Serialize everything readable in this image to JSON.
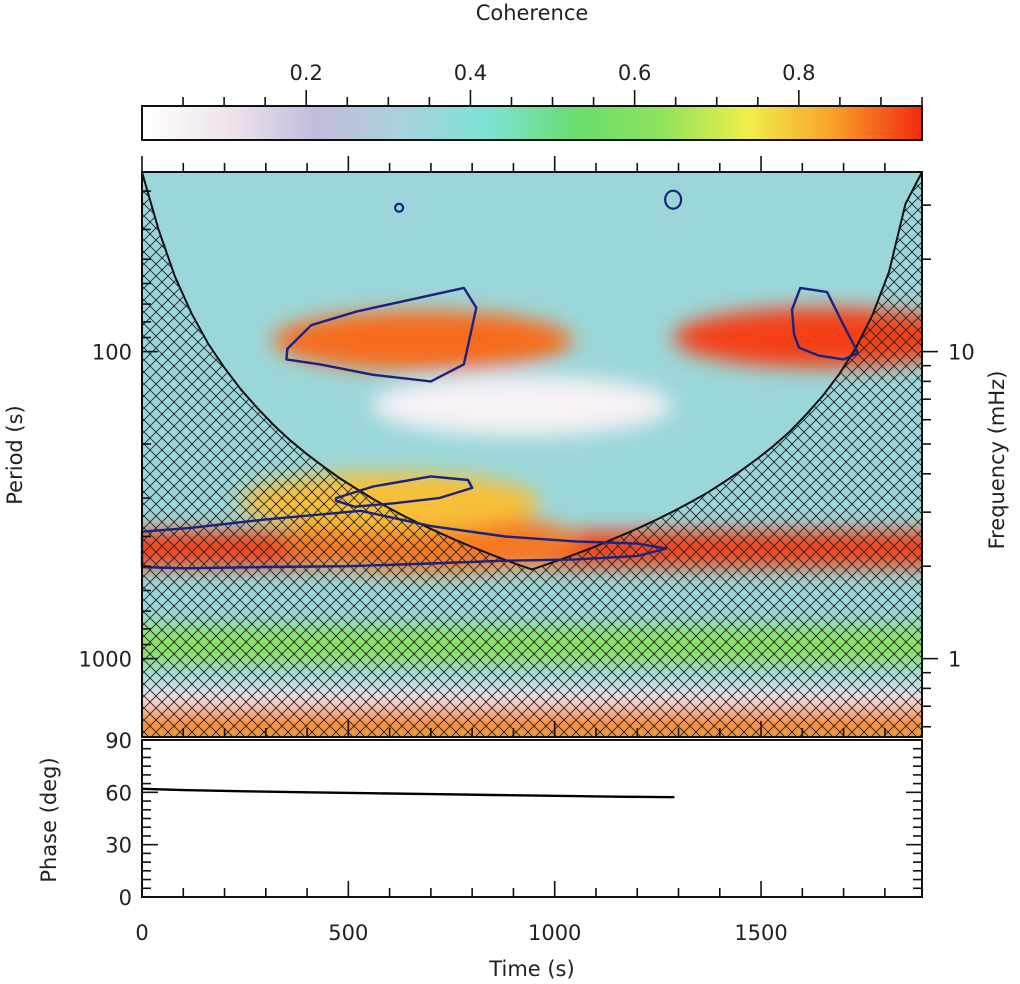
{
  "chart_data": [
    {
      "type": "heatmap",
      "title": "",
      "colorbar": {
        "title": "Coherence",
        "range": [
          0,
          0.95
        ],
        "ticks": [
          0.2,
          0.4,
          0.6,
          0.8
        ],
        "tick_labels": [
          "0.2",
          "0.4",
          "0.6",
          "0.8"
        ],
        "colors": [
          "#ffffff",
          "#efe4ec",
          "#c3bcdc",
          "#a9d2dc",
          "#7ce3d5",
          "#68dd6f",
          "#8fe35b",
          "#f1ef4a",
          "#fa9e29",
          "#f22a10"
        ]
      },
      "xlabel": "Time (s)",
      "ylabel": "Period (s)",
      "y2label": "Frequency (mHz)",
      "xlim": [
        0,
        1890
      ],
      "ylim_period": [
        26,
        1800
      ],
      "yscale": "log",
      "x_ticks": [
        0,
        500,
        1000,
        1500
      ],
      "x_tick_labels": [
        "0",
        "500",
        "1000",
        "1500"
      ],
      "y_ticks": [
        100,
        1000
      ],
      "y_tick_labels": [
        "100",
        "1000"
      ],
      "y2_ticks_mhz": [
        10,
        1
      ],
      "y2_tick_labels": [
        "10",
        "1"
      ],
      "features": [
        {
          "name": "band-1",
          "period": 440,
          "coherence": 0.93
        },
        {
          "name": "band-2",
          "period": 900,
          "coherence": 0.62
        },
        {
          "name": "band-3",
          "period": 1400,
          "coherence": 0.1
        },
        {
          "name": "band-4",
          "period": 1650,
          "coherence": 0.86
        },
        {
          "name": "blob-1",
          "time": 700,
          "period": 420,
          "coherence": 0.88
        },
        {
          "name": "blob-2",
          "time": 680,
          "period": 92,
          "coherence": 0.89
        },
        {
          "name": "blob-3",
          "time": 1650,
          "period": 90,
          "coherence": 0.93
        },
        {
          "name": "blob-4",
          "time": 600,
          "period": 310,
          "coherence": 0.8
        },
        {
          "name": "blob-5",
          "time": 920,
          "period": 150,
          "coherence": 0.05
        }
      ],
      "significance_contours": [
        {
          "name": "contour-high-left",
          "points": [
            [
              352,
              98
            ],
            [
              410,
              82
            ],
            [
              520,
              74
            ],
            [
              780,
              62
            ],
            [
              810,
              72
            ],
            [
              780,
              110
            ],
            [
              700,
              125
            ],
            [
              560,
              119
            ],
            [
              430,
              110
            ],
            [
              350,
              106
            ]
          ]
        },
        {
          "name": "contour-high-right",
          "points": [
            [
              1575,
              73
            ],
            [
              1595,
              62
            ],
            [
              1660,
              64
            ],
            [
              1700,
              82
            ],
            [
              1735,
              101
            ],
            [
              1700,
              106
            ],
            [
              1640,
              103
            ],
            [
              1592,
              97
            ],
            [
              1580,
              88
            ]
          ]
        },
        {
          "name": "contour-mid",
          "points": [
            [
              470,
              300
            ],
            [
              560,
              275
            ],
            [
              700,
              255
            ],
            [
              790,
              262
            ],
            [
              800,
              278
            ],
            [
              720,
              300
            ],
            [
              610,
              312
            ],
            [
              515,
              320
            ],
            [
              470,
              306
            ]
          ]
        },
        {
          "name": "contour-long",
          "points": [
            [
              0,
              386
            ],
            [
              120,
              375
            ],
            [
              300,
              352
            ],
            [
              530,
              330
            ],
            [
              700,
              370
            ],
            [
              880,
              400
            ],
            [
              1050,
              415
            ],
            [
              1200,
              422
            ],
            [
              1270,
              438
            ],
            [
              1200,
              463
            ],
            [
              1050,
              475
            ],
            [
              870,
              480
            ],
            [
              700,
              490
            ],
            [
              500,
              500
            ],
            [
              300,
              503
            ],
            [
              100,
              508
            ],
            [
              0,
              503
            ]
          ]
        },
        {
          "name": "contour-small-1",
          "time": 623,
          "period": 34
        },
        {
          "name": "contour-small-2",
          "time": 1287,
          "period": 32
        }
      ],
      "cone_of_influence": {
        "times": [
          0,
          40,
          80,
          120,
          160,
          200,
          240,
          280,
          320,
          360,
          400,
          440,
          480,
          520,
          560,
          600,
          640,
          680,
          720,
          760,
          800,
          840,
          880,
          920,
          945,
          970,
          1010,
          1050,
          1090,
          1130,
          1170,
          1210,
          1250,
          1290,
          1330,
          1370,
          1410,
          1450,
          1490,
          1530,
          1570,
          1610,
          1650,
          1690,
          1730,
          1770,
          1810,
          1850,
          1890
        ],
        "periods": [
          26,
          40,
          57,
          75,
          94,
          113,
          133,
          153,
          174,
          195,
          216,
          237,
          259,
          280,
          302,
          324,
          346,
          367,
          389,
          411,
          433,
          455,
          477,
          499,
          512,
          499,
          478,
          457,
          436,
          414,
          393,
          372,
          351,
          330,
          309,
          288,
          266,
          245,
          224,
          203,
          182,
          160,
          139,
          118,
          97,
          76,
          55,
          33,
          26
        ]
      }
    },
    {
      "type": "line",
      "ylabel": "Phase (deg)",
      "xlabel": "Time (s)",
      "xlim": [
        0,
        1890
      ],
      "ylim": [
        0,
        90
      ],
      "x_ticks": [
        0,
        500,
        1000,
        1500
      ],
      "x_tick_labels": [
        "0",
        "500",
        "1000",
        "1500"
      ],
      "y_ticks": [
        0,
        30,
        60,
        90
      ],
      "y_tick_labels": [
        "0",
        "30",
        "60",
        "90"
      ],
      "series": [
        {
          "name": "phase",
          "x": [
            0,
            100,
            250,
            400,
            550,
            700,
            850,
            1000,
            1150,
            1290
          ],
          "y": [
            62,
            61.3,
            60.6,
            60.0,
            59.5,
            59.0,
            58.5,
            58.0,
            57.5,
            57.2
          ]
        }
      ]
    }
  ]
}
